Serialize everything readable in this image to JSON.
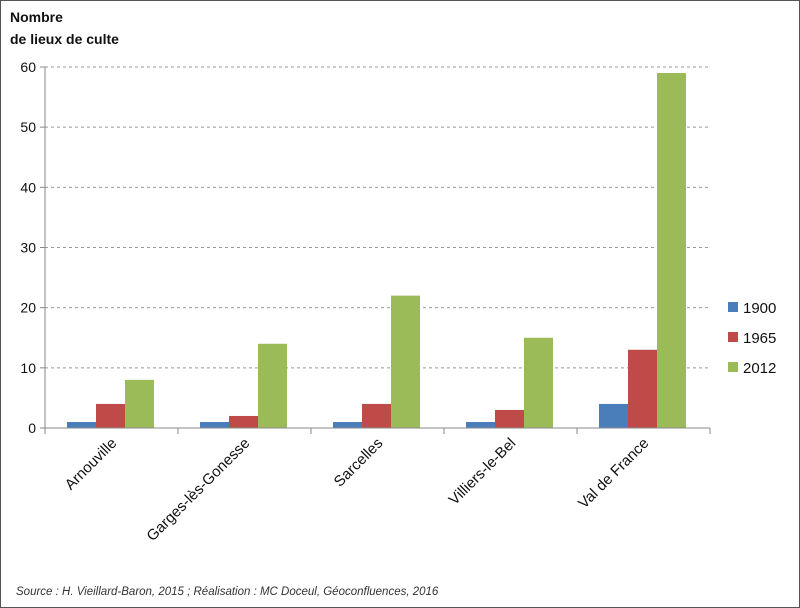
{
  "chart_data": {
    "type": "bar",
    "ylabel": [
      "Nombre",
      "de lieux de culte"
    ],
    "categories": [
      "Arnouville",
      "Garges-lès-Gonesse",
      "Sarcelles",
      "Villiers-le-Bel",
      "Val de France"
    ],
    "series": [
      {
        "name": "1900",
        "color": "#4a7ebb",
        "values": [
          1,
          1,
          1,
          1,
          4
        ]
      },
      {
        "name": "1965",
        "color": "#be4b48",
        "values": [
          4,
          2,
          4,
          3,
          13
        ]
      },
      {
        "name": "2012",
        "color": "#9bbb59",
        "values": [
          8,
          14,
          22,
          15,
          59
        ]
      }
    ],
    "ylim": [
      0,
      60
    ],
    "yticks": [
      0,
      10,
      20,
      30,
      40,
      50,
      60
    ],
    "grid": true,
    "legend": "right"
  },
  "source": "Source : H. Vieillard-Baron, 2015 ; Réalisation : MC Doceul,  Géoconfluences, 2016"
}
